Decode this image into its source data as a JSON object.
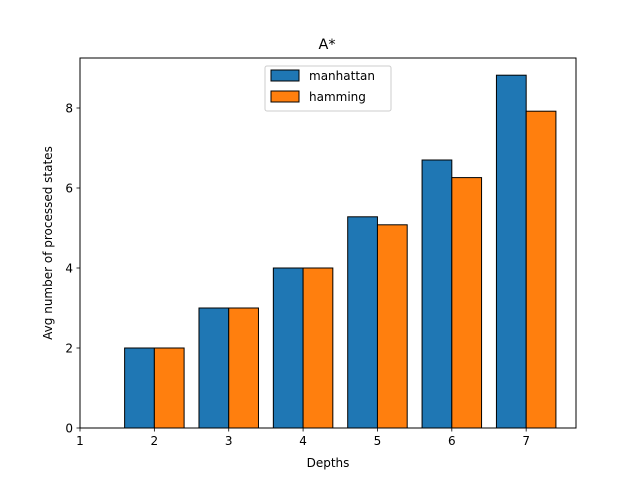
{
  "chart_data": {
    "type": "bar",
    "title": "A*",
    "xlabel": "Depths",
    "ylabel": "Avg number of processed states",
    "x_ticks": [
      "1",
      "2",
      "3",
      "4",
      "5",
      "6",
      "7"
    ],
    "y_ticks": [
      "0",
      "2",
      "4",
      "6",
      "8"
    ],
    "xlim": [
      1,
      7.67
    ],
    "ylim": [
      0,
      9.25
    ],
    "categories": [
      2,
      3,
      4,
      5,
      6,
      7
    ],
    "series": [
      {
        "name": "manhattan",
        "color": "#1f77b4",
        "values": [
          2,
          3,
          4,
          5.28,
          6.7,
          8.82
        ]
      },
      {
        "name": "hamming",
        "color": "#ff7f0e",
        "values": [
          2,
          3,
          4,
          5.08,
          6.26,
          7.92
        ]
      }
    ],
    "legend_position": "top-center",
    "grid": false
  }
}
